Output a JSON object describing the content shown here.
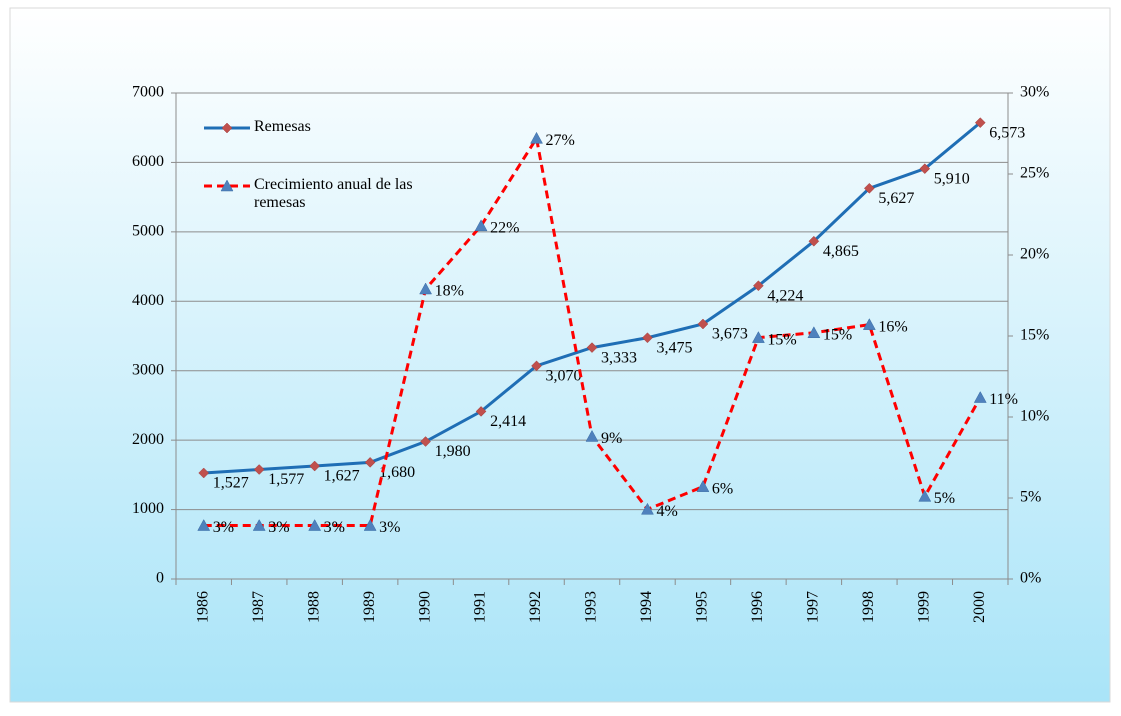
{
  "chart_data": {
    "type": "line",
    "categories": [
      "1986",
      "1987",
      "1988",
      "1989",
      "1990",
      "1991",
      "1992",
      "1993",
      "1994",
      "1995",
      "1996",
      "1997",
      "1998",
      "1999",
      "2000"
    ],
    "series": [
      {
        "name": "Remesas",
        "color": "#1f6eb5",
        "marker_color": "#c0504d",
        "marker": "diamond",
        "dash": false,
        "values": [
          1527,
          1577,
          1627,
          1680,
          1980,
          2414,
          3070,
          3333,
          3475,
          3673,
          4224,
          4865,
          5627,
          5910,
          6573
        ],
        "value_labels": [
          "1,527",
          "1,577",
          "1,627",
          "1,680",
          "1,980",
          "2,414",
          "3,070",
          "3,333",
          "3,475",
          "3,673",
          "4,224",
          "4,865",
          "5,627",
          "5,910",
          "6,573"
        ]
      },
      {
        "name": "Crecimiento anual de las remesas",
        "color": "#ff0000",
        "marker_color": "#4f81bd",
        "marker": "triangle",
        "dash": true,
        "axis": "y2",
        "values": [
          3.3,
          3.3,
          3.3,
          3.3,
          17.9,
          21.8,
          27.2,
          8.8,
          4.3,
          5.7,
          14.9,
          15.2,
          15.7,
          5.1,
          11.2
        ],
        "value_labels": [
          "3%",
          "3%",
          "3%",
          "3%",
          "18%",
          "22%",
          "27%",
          "9%",
          "4%",
          "6%",
          "15%",
          "15%",
          "16%",
          "5%",
          "11%"
        ]
      }
    ],
    "ylim": [
      0,
      7000
    ],
    "yticks": [
      0,
      1000,
      2000,
      3000,
      4000,
      5000,
      6000,
      7000
    ],
    "y2lim": [
      0,
      30
    ],
    "y2ticks": [
      {
        "value": 0,
        "label": "0%"
      },
      {
        "value": 5,
        "label": "5%"
      },
      {
        "value": 10,
        "label": "10%"
      },
      {
        "value": 15,
        "label": "15%"
      },
      {
        "value": 20,
        "label": "20%"
      },
      {
        "value": 25,
        "label": "25%"
      },
      {
        "value": 30,
        "label": "30%"
      }
    ],
    "grid": true,
    "legend": "upper left"
  }
}
